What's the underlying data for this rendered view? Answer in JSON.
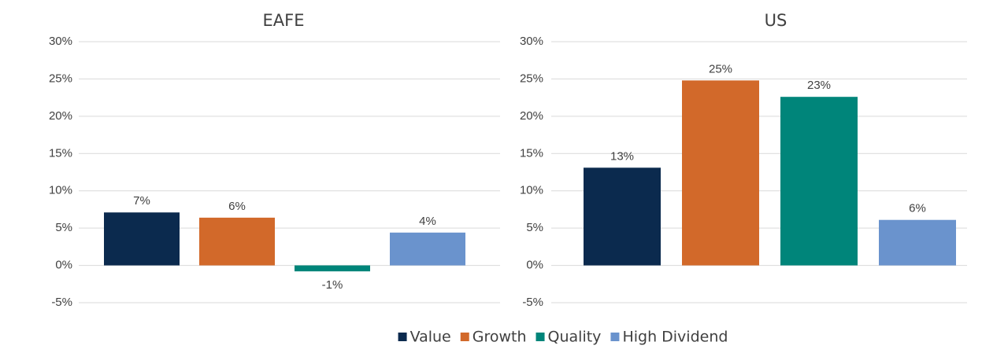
{
  "legend": [
    {
      "name": "Value",
      "color": "#0b2a4e"
    },
    {
      "name": "Growth",
      "color": "#d2692a"
    },
    {
      "name": "Quality",
      "color": "#00857a"
    },
    {
      "name": "High Dividend",
      "color": "#6a93cd"
    }
  ],
  "chart_data": [
    {
      "type": "bar",
      "title": "EAFE",
      "values": [
        7.1,
        6.4,
        -0.8,
        4.4
      ],
      "value_labels": [
        "7%",
        "6%",
        "-1%",
        "4%"
      ],
      "ylim": [
        -5,
        30
      ],
      "yticks": [
        {
          "value": -5,
          "label": "-5%"
        },
        {
          "value": 0,
          "label": "0%"
        },
        {
          "value": 5,
          "label": "5%"
        },
        {
          "value": 10,
          "label": "10%"
        },
        {
          "value": 15,
          "label": "15%"
        },
        {
          "value": 20,
          "label": "20%"
        },
        {
          "value": 25,
          "label": "25%"
        },
        {
          "value": 30,
          "label": "30%"
        }
      ],
      "grid": true
    },
    {
      "type": "bar",
      "title": "US",
      "values": [
        13.1,
        24.8,
        22.6,
        6.1
      ],
      "value_labels": [
        "13%",
        "25%",
        "23%",
        "6%"
      ],
      "ylim": [
        -5,
        30
      ],
      "yticks": [
        {
          "value": -5,
          "label": "-5%"
        },
        {
          "value": 0,
          "label": "0%"
        },
        {
          "value": 5,
          "label": "5%"
        },
        {
          "value": 10,
          "label": "10%"
        },
        {
          "value": 15,
          "label": "15%"
        },
        {
          "value": 20,
          "label": "20%"
        },
        {
          "value": 25,
          "label": "25%"
        },
        {
          "value": 30,
          "label": "30%"
        }
      ],
      "grid": true
    }
  ]
}
